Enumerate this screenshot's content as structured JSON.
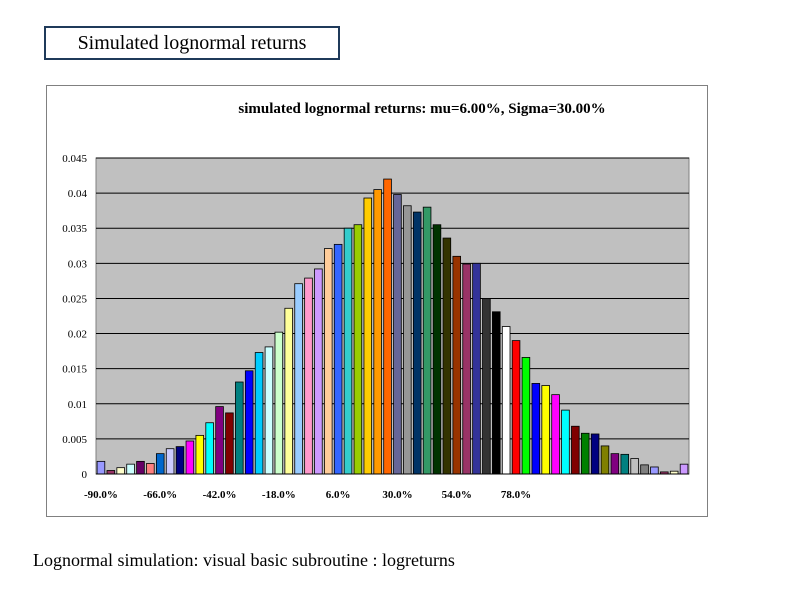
{
  "slide": {
    "title": "Simulated lognormal returns",
    "caption": "Lognormal simulation: visual basic subroutine : logreturns"
  },
  "chart_data": {
    "type": "bar",
    "title": "simulated lognormal returns: mu=6.00%, Sigma=30.00%",
    "xlabel": "",
    "ylabel": "",
    "ylim": [
      0,
      0.045
    ],
    "yticks": [
      "0",
      "0.005",
      "0.01",
      "0.015",
      "0.02",
      "0.025",
      "0.03",
      "0.035",
      "0.04",
      "0.045"
    ],
    "xtick_labels": [
      "-90.0%",
      "-66.0%",
      "-42.0%",
      "-18.0%",
      "6.0%",
      "30.0%",
      "54.0%",
      "78.0%"
    ],
    "grid": true,
    "plot_background": "#c0c0c0",
    "values": [
      0.0018,
      0.0005,
      0.0009,
      0.0014,
      0.0018,
      0.0015,
      0.0029,
      0.0036,
      0.0039,
      0.0047,
      0.0055,
      0.0073,
      0.0096,
      0.0087,
      0.0131,
      0.0147,
      0.0173,
      0.0181,
      0.0202,
      0.0236,
      0.0271,
      0.0279,
      0.0292,
      0.0321,
      0.0327,
      0.035,
      0.0355,
      0.0393,
      0.0405,
      0.042,
      0.0398,
      0.0382,
      0.0373,
      0.038,
      0.0355,
      0.0336,
      0.031,
      0.0299,
      0.03,
      0.025,
      0.0231,
      0.021,
      0.019,
      0.0166,
      0.0129,
      0.0126,
      0.0113,
      0.0091,
      0.0068,
      0.0058,
      0.0057,
      0.004,
      0.0029,
      0.0028,
      0.0022,
      0.0013,
      0.001,
      0.0003,
      0.0004,
      0.0014
    ],
    "colors": [
      "#9999ff",
      "#993366",
      "#ffffcc",
      "#ccffff",
      "#660066",
      "#ff8080",
      "#0066cc",
      "#ccccff",
      "#000080",
      "#ff00ff",
      "#ffff00",
      "#00ffff",
      "#800080",
      "#800000",
      "#008080",
      "#0000ff",
      "#00ccff",
      "#ccffff",
      "#ccffcc",
      "#ffff99",
      "#99ccff",
      "#ff99cc",
      "#cc99ff",
      "#ffcc99",
      "#3366ff",
      "#33cccc",
      "#99cc00",
      "#ffcc00",
      "#ff9900",
      "#ff6600",
      "#666699",
      "#969696",
      "#003366",
      "#339966",
      "#003300",
      "#333300",
      "#993300",
      "#993366",
      "#333399",
      "#333333",
      "#000000",
      "#ffffff",
      "#ff0000",
      "#00ff00",
      "#0000ff",
      "#ffff00",
      "#ff00ff",
      "#00ffff",
      "#800000",
      "#008000",
      "#000080",
      "#808000",
      "#800080",
      "#008080",
      "#c0c0c0",
      "#808080",
      "#9999ff",
      "#993366",
      "#ffffcc",
      "#cc99ff"
    ]
  }
}
